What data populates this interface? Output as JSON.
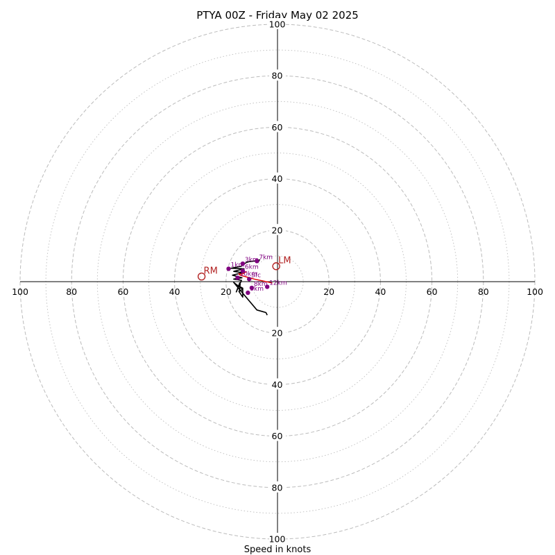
{
  "chart_data": {
    "type": "hodograph",
    "title": "PTYA 00Z - Friday May 02 2025",
    "xlabel": "Speed in knots",
    "ring_range": [
      0,
      100
    ],
    "dashed_rings": [
      20,
      40,
      60,
      80,
      100
    ],
    "dotted_rings": [
      10,
      30,
      50,
      70,
      90
    ],
    "grid": true,
    "axis_tick_labels": {
      "left": [
        "100",
        "80",
        "60",
        "40",
        "20"
      ],
      "right": [
        "20",
        "40",
        "60",
        "80",
        "100"
      ],
      "up": [
        "20",
        "40",
        "60",
        "80",
        "100"
      ],
      "down": [
        "20",
        "40",
        "60",
        "80",
        "100"
      ]
    },
    "hodograph_line": {
      "color": "#000000",
      "points": [
        [
          -4,
          -13
        ],
        [
          -4.5,
          -12
        ],
        [
          -8,
          -11
        ],
        [
          -16,
          -1.5
        ],
        [
          -17,
          -0.3
        ],
        [
          -13.5,
          -3
        ],
        [
          -15,
          -3.8
        ],
        [
          -13.5,
          -6
        ],
        [
          -13.5,
          -2.5
        ],
        [
          -14.5,
          -2
        ],
        [
          -14.8,
          -3.5
        ],
        [
          -14.5,
          -1
        ],
        [
          -14.7,
          -0.5
        ],
        [
          -16,
          -4
        ],
        [
          -14,
          0.5
        ],
        [
          -17,
          1
        ],
        [
          -13.8,
          1.5
        ],
        [
          -17.5,
          2.5
        ],
        [
          -13.5,
          3.5
        ],
        [
          -17,
          4
        ],
        [
          -13,
          5
        ],
        [
          -18,
          5.2
        ],
        [
          -14,
          6
        ],
        [
          -12.8,
          7
        ],
        [
          -12,
          7.5
        ],
        [
          -11,
          7.8
        ],
        [
          -9,
          8
        ],
        [
          -7,
          8.5
        ],
        [
          -7.5,
          7.5
        ]
      ]
    },
    "storm_motion_line": {
      "color": "#dd0000",
      "points": [
        [
          -2,
          -0.5
        ],
        [
          -9,
          1
        ],
        [
          -14.5,
          2.5
        ],
        [
          -15,
          3
        ],
        [
          -13.5,
          3
        ],
        [
          -12,
          4
        ]
      ]
    },
    "height_points": [
      {
        "label": "Sfc",
        "x": -11,
        "y": 1
      },
      {
        "label": "1km",
        "x": -19,
        "y": 5
      },
      {
        "label": "3km",
        "x": -13.5,
        "y": 7
      },
      {
        "label": "6km",
        "x": -13.5,
        "y": 4.2
      },
      {
        "label": "7km",
        "x": -8,
        "y": 8
      },
      {
        "label": "8km",
        "x": -10,
        "y": -2.4
      },
      {
        "label": "9km",
        "x": -11.5,
        "y": -4.3
      },
      {
        "label": "10km",
        "x": -15.5,
        "y": 1.5
      },
      {
        "label": "12km",
        "x": -4,
        "y": -2
      }
    ],
    "storm_motions": [
      {
        "label": "LM",
        "x": -0.5,
        "y": 6
      },
      {
        "label": "RM",
        "x": -29.5,
        "y": 2
      }
    ]
  },
  "colors": {
    "hodograph_line": "#000000",
    "storm_motion_line": "#dd0000",
    "height_points": "#800080",
    "storm_motion_markers": "#b22222",
    "grid": "#bbbbbb"
  }
}
